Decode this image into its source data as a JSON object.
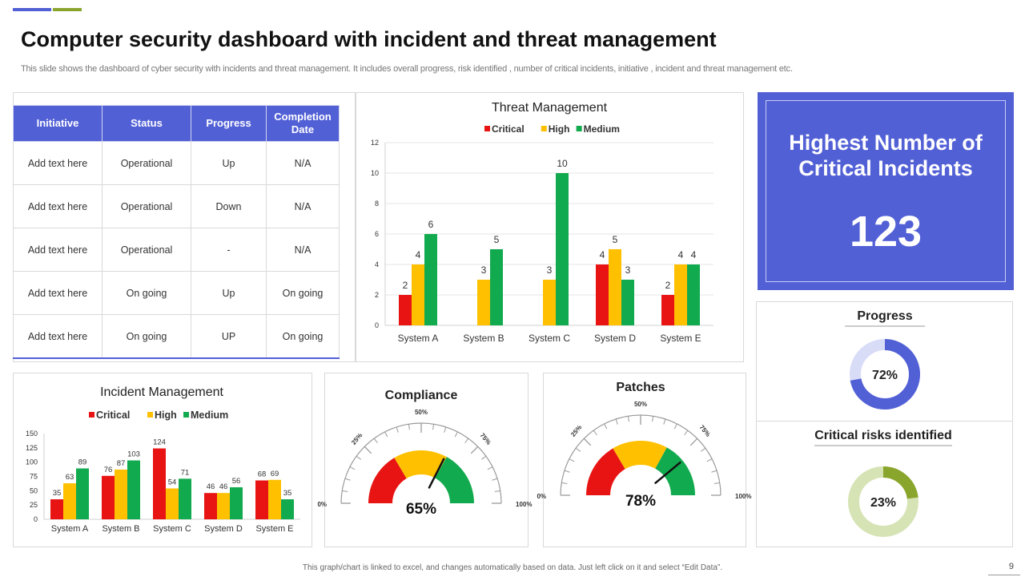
{
  "slide": {
    "title": "Computer security dashboard with incident and threat management",
    "subtitle": "This slide shows the dashboard of cyber security with incidents and threat management. It includes overall progress, risk identified , number of critical incidents, initiative ,  incident and threat management etc.",
    "footer": "This graph/chart is linked to excel, and changes automatically based on data. Just left click on it and select “Edit Data”.",
    "page_number": "9",
    "colors": {
      "accent_blue": "#5260d6",
      "accent_green": "#8aa52c",
      "critical": "#e81414",
      "high": "#ffc000",
      "medium": "#12aa4e"
    }
  },
  "initiative_table": {
    "headers": [
      "Initiative",
      "Status",
      "Progress",
      "Completion Date"
    ],
    "rows": [
      [
        "Add text here",
        "Operational",
        "Up",
        "N/A"
      ],
      [
        "Add text here",
        "Operational",
        "Down",
        "N/A"
      ],
      [
        "Add text here",
        "Operational",
        "-",
        "N/A"
      ],
      [
        "Add text here",
        "On going",
        "Up",
        "On going"
      ],
      [
        "Add text here",
        "On going",
        "UP",
        "On going"
      ]
    ]
  },
  "critical_incidents": {
    "title": "Highest Number of Critical Incidents",
    "value": "123"
  },
  "chart_data": [
    {
      "id": "threat",
      "type": "bar",
      "title": "Threat Management",
      "categories": [
        "System A",
        "System B",
        "System C",
        "System D",
        "System E"
      ],
      "series": [
        {
          "name": "Critical",
          "color": "#e81414",
          "values": [
            2,
            null,
            null,
            4,
            2
          ]
        },
        {
          "name": "High",
          "color": "#ffc000",
          "values": [
            4,
            3,
            3,
            5,
            4
          ]
        },
        {
          "name": "Medium",
          "color": "#12aa4e",
          "values": [
            6,
            5,
            10,
            3,
            4
          ]
        }
      ],
      "ylim": [
        0,
        12
      ],
      "yticks": [
        0,
        2,
        4,
        6,
        8,
        10,
        12
      ],
      "grid": true,
      "legend": "top"
    },
    {
      "id": "incident",
      "type": "bar",
      "title": "Incident Management",
      "categories": [
        "System A",
        "System B",
        "System C",
        "System D",
        "System E"
      ],
      "series": [
        {
          "name": "Critical",
          "color": "#e81414",
          "values": [
            35,
            76,
            124,
            46,
            68
          ]
        },
        {
          "name": "High",
          "color": "#ffc000",
          "values": [
            63,
            87,
            54,
            46,
            69
          ]
        },
        {
          "name": "Medium",
          "color": "#12aa4e",
          "values": [
            89,
            103,
            71,
            56,
            35
          ]
        }
      ],
      "ylim": [
        0,
        150
      ],
      "yticks": [
        0,
        25,
        50,
        75,
        100,
        125,
        150
      ],
      "grid": false,
      "legend": "top"
    },
    {
      "id": "compliance",
      "type": "gauge",
      "title": "Compliance",
      "value_label": "65%",
      "value": 65,
      "tick_labels": [
        "0%",
        "25%",
        "50%",
        "75%",
        "100%"
      ],
      "bands": [
        {
          "color": "#e81414",
          "from": 0,
          "to": 33
        },
        {
          "color": "#ffc000",
          "from": 33,
          "to": 66
        },
        {
          "color": "#12aa4e",
          "from": 66,
          "to": 100
        }
      ]
    },
    {
      "id": "patches",
      "type": "gauge",
      "title": "Patches",
      "value_label": "78%",
      "value": 78,
      "tick_labels": [
        "0%",
        "25%",
        "50%",
        "75%",
        "100%"
      ],
      "bands": [
        {
          "color": "#e81414",
          "from": 0,
          "to": 33
        },
        {
          "color": "#ffc000",
          "from": 33,
          "to": 66
        },
        {
          "color": "#12aa4e",
          "from": 66,
          "to": 100
        }
      ]
    },
    {
      "id": "progress",
      "type": "pie",
      "title": "Progress",
      "value_label": "72%",
      "value": 72,
      "color": "#5260d6",
      "track_color": "#d9dcf7"
    },
    {
      "id": "risks",
      "type": "pie",
      "title": "Critical risks identified",
      "value_label": "23%",
      "value": 23,
      "color": "#8aa52c",
      "track_color": "#d6e3b5"
    }
  ]
}
